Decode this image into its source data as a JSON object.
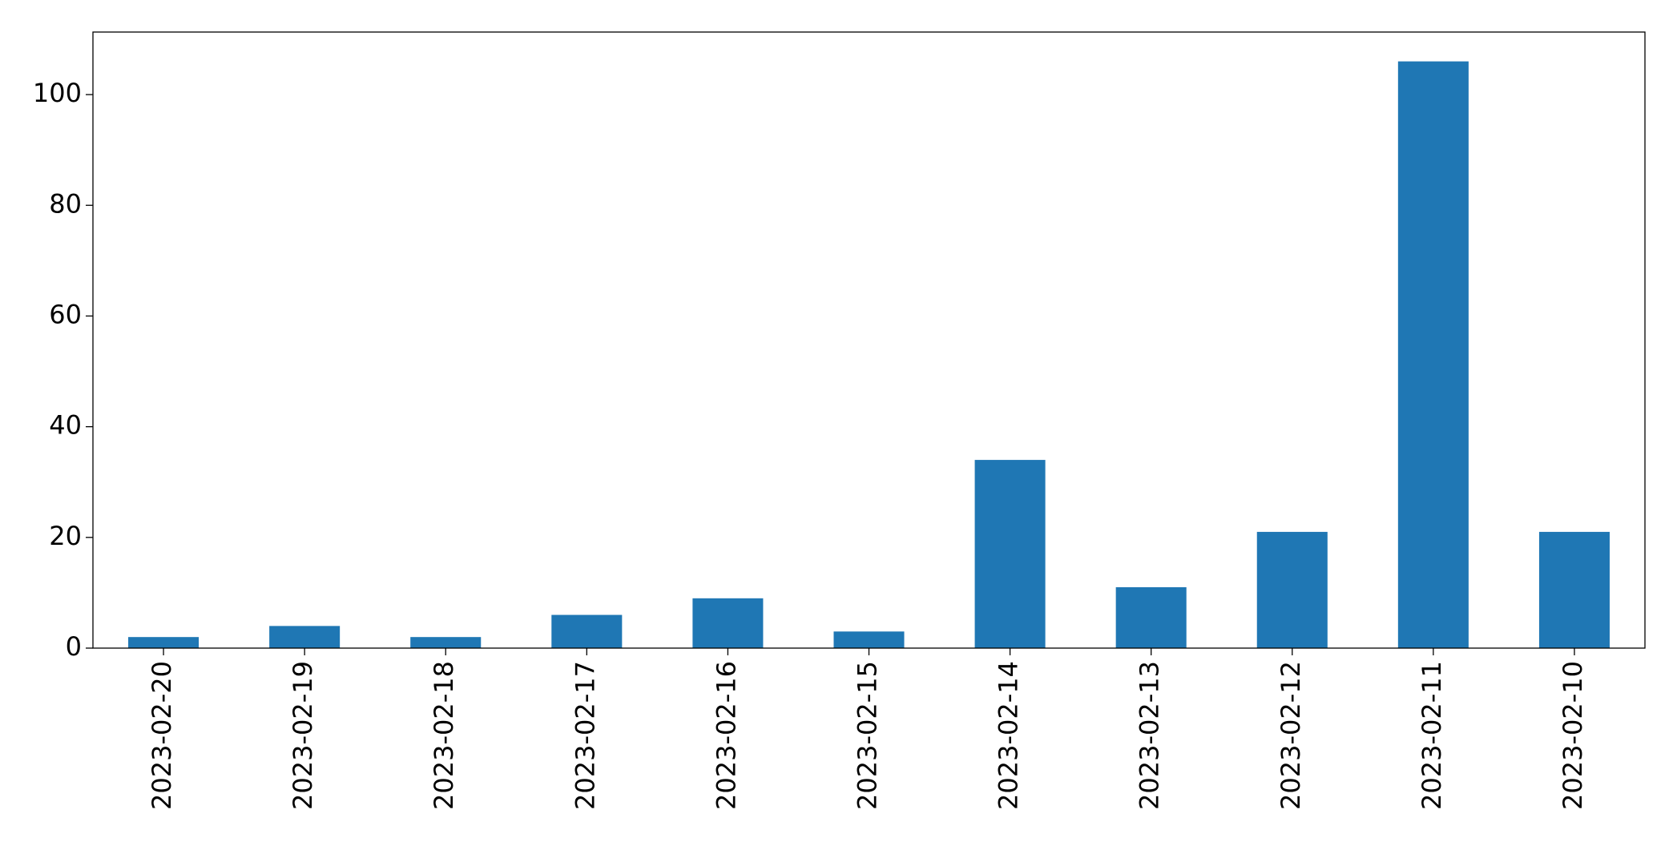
{
  "chart_data": {
    "type": "bar",
    "categories": [
      "2023-02-20",
      "2023-02-19",
      "2023-02-18",
      "2023-02-17",
      "2023-02-16",
      "2023-02-15",
      "2023-02-14",
      "2023-02-13",
      "2023-02-12",
      "2023-02-11",
      "2023-02-10"
    ],
    "values": [
      2,
      4,
      2,
      6,
      9,
      3,
      34,
      11,
      21,
      106,
      21
    ],
    "color": "#1f77b4",
    "ylim": [
      0,
      111.3
    ],
    "yticks": [
      0,
      20,
      40,
      60,
      80,
      100
    ],
    "grid": false
  }
}
